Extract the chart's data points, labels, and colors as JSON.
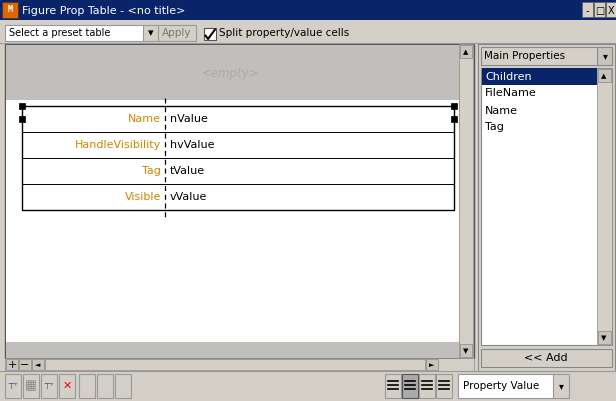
{
  "title": "Figure Prop Table - <no title>",
  "bg_color": "#d4d0c8",
  "title_bar_bg": "#0a246a",
  "title_text": "Figure Prop Table - <no title>",
  "preset_label": "Select a preset table",
  "apply_label": "Apply",
  "checkbox_label": "Split property/value cells",
  "empty_label": "<empty>",
  "prop_text_color": "#cc8800",
  "val_text_color": "#000000",
  "table_rows": [
    {
      "prop": "Name",
      "val": "nValue"
    },
    {
      "prop": "HandleVisibility",
      "val": "hvValue"
    },
    {
      "prop": "Tag",
      "val": "tValue"
    },
    {
      "prop": "Visible",
      "val": "vValue"
    }
  ],
  "right_panel_title": "Main Properties",
  "right_list": [
    "Children",
    "FileName",
    "Name",
    "Tag"
  ],
  "selected_item": "Children",
  "selected_bg": "#0a246a",
  "add_button": "<< Add",
  "bottom_dropdown": "Property Value",
  "figsize": [
    6.16,
    4.01
  ],
  "dpi": 100
}
